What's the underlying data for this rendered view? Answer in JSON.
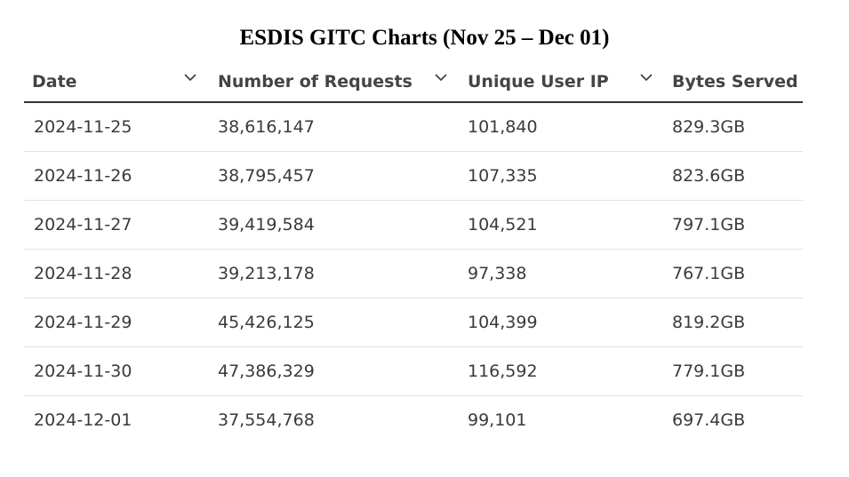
{
  "title": "ESDIS GITC Charts (Nov 25 – Dec 01)",
  "chart_data": {
    "type": "table",
    "title": "ESDIS GITC Charts (Nov 25 – Dec 01)",
    "columns": [
      "Date",
      "Number of Requests",
      "Unique User IP",
      "Bytes Served"
    ],
    "rows": [
      [
        "2024-11-25",
        "38,616,147",
        "101,840",
        "829.3GB"
      ],
      [
        "2024-11-26",
        "38,795,457",
        "107,335",
        "823.6GB"
      ],
      [
        "2024-11-27",
        "39,419,584",
        "104,521",
        "797.1GB"
      ],
      [
        "2024-11-28",
        "39,213,178",
        "97,338",
        "767.1GB"
      ],
      [
        "2024-11-29",
        "45,426,125",
        "104,399",
        "819.2GB"
      ],
      [
        "2024-11-30",
        "47,386,329",
        "116,592",
        "779.1GB"
      ],
      [
        "2024-12-01",
        "37,554,768",
        "99,101",
        "697.4GB"
      ]
    ]
  },
  "icons": {
    "sort": "chevron-down-icon"
  },
  "colors": {
    "header_rule": "#333333",
    "row_divider": "#e2e2e2",
    "text": "#3a3a3a"
  }
}
